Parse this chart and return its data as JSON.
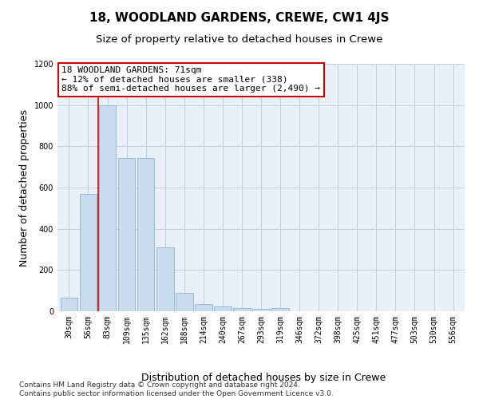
{
  "title": "18, WOODLAND GARDENS, CREWE, CW1 4JS",
  "subtitle": "Size of property relative to detached houses in Crewe",
  "xlabel": "Distribution of detached houses by size in Crewe",
  "ylabel": "Number of detached properties",
  "bar_color": "#c8dced",
  "bar_edge_color": "#8ab4d4",
  "background_color": "#eaf0f8",
  "categories": [
    "30sqm",
    "56sqm",
    "83sqm",
    "109sqm",
    "135sqm",
    "162sqm",
    "188sqm",
    "214sqm",
    "240sqm",
    "267sqm",
    "293sqm",
    "319sqm",
    "346sqm",
    "372sqm",
    "398sqm",
    "425sqm",
    "451sqm",
    "477sqm",
    "503sqm",
    "530sqm",
    "556sqm"
  ],
  "values": [
    65,
    570,
    1000,
    745,
    745,
    310,
    90,
    35,
    25,
    15,
    10,
    15,
    0,
    0,
    0,
    0,
    0,
    0,
    0,
    0,
    0
  ],
  "ylim": [
    0,
    1200
  ],
  "yticks": [
    0,
    200,
    400,
    600,
    800,
    1000,
    1200
  ],
  "vline_position": 1.5,
  "vline_color": "#cc0000",
  "annotation_text": "18 WOODLAND GARDENS: 71sqm\n← 12% of detached houses are smaller (338)\n88% of semi-detached houses are larger (2,490) →",
  "annotation_box_color": "#ffffff",
  "annotation_box_edge_color": "#cc0000",
  "footer_text": "Contains HM Land Registry data © Crown copyright and database right 2024.\nContains public sector information licensed under the Open Government Licence v3.0.",
  "grid_color": "#c0d0e0",
  "title_fontsize": 11,
  "subtitle_fontsize": 9.5,
  "axis_label_fontsize": 9,
  "tick_fontsize": 7,
  "annotation_fontsize": 8,
  "footer_fontsize": 6.5
}
